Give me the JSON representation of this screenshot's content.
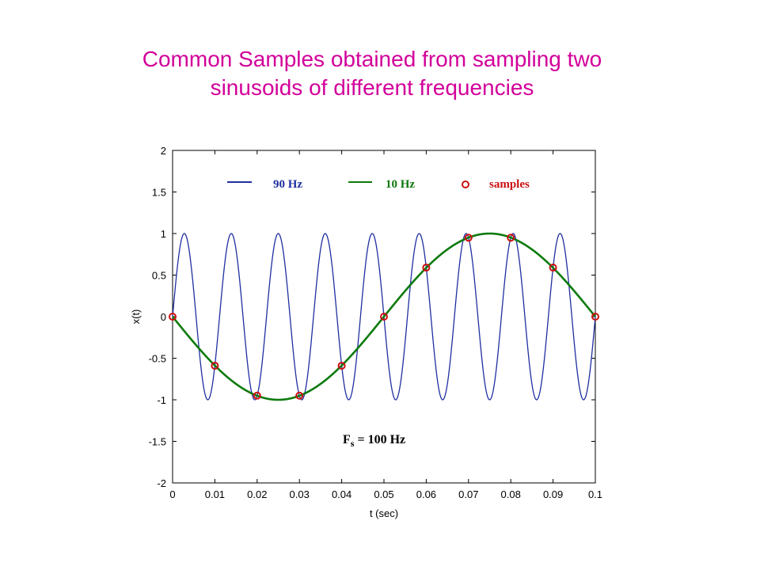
{
  "slide": {
    "title_line1": "Common Samples obtained from sampling two",
    "title_line2": "sinusoids of different frequencies",
    "title_color": "#d2009a"
  },
  "chart_data": {
    "type": "line",
    "xlabel": "t (sec)",
    "ylabel": "x(t)",
    "xlim": [
      0,
      0.1
    ],
    "ylim": [
      -2,
      2
    ],
    "xticks": [
      "0",
      "0.01",
      "0.02",
      "0.03",
      "0.04",
      "0.05",
      "0.06",
      "0.07",
      "0.08",
      "0.09",
      "0.1"
    ],
    "yticks": [
      "2",
      "1.5",
      "1",
      "0.5",
      "0",
      "-0.5",
      "-1",
      "-1.5",
      "-2"
    ],
    "grid": false,
    "legend_position": "top",
    "series": [
      {
        "name": "90 Hz",
        "function": "sin(2*pi*90*t)",
        "color": "#1f2fa0"
      },
      {
        "name": "10 Hz",
        "function": "-sin(2*pi*10*t)",
        "color": "#0d7a0d"
      },
      {
        "name": "samples",
        "color": "#cc1010",
        "x": [
          0,
          0.01,
          0.02,
          0.03,
          0.04,
          0.05,
          0.06,
          0.07,
          0.08,
          0.09,
          0.1
        ],
        "y": [
          0,
          -0.59,
          -0.95,
          -0.95,
          -0.59,
          0,
          0.59,
          0.95,
          0.95,
          0.59,
          0
        ]
      }
    ],
    "annotation": {
      "main": "F",
      "sub": "s",
      "rest": " = 100 Hz"
    }
  }
}
